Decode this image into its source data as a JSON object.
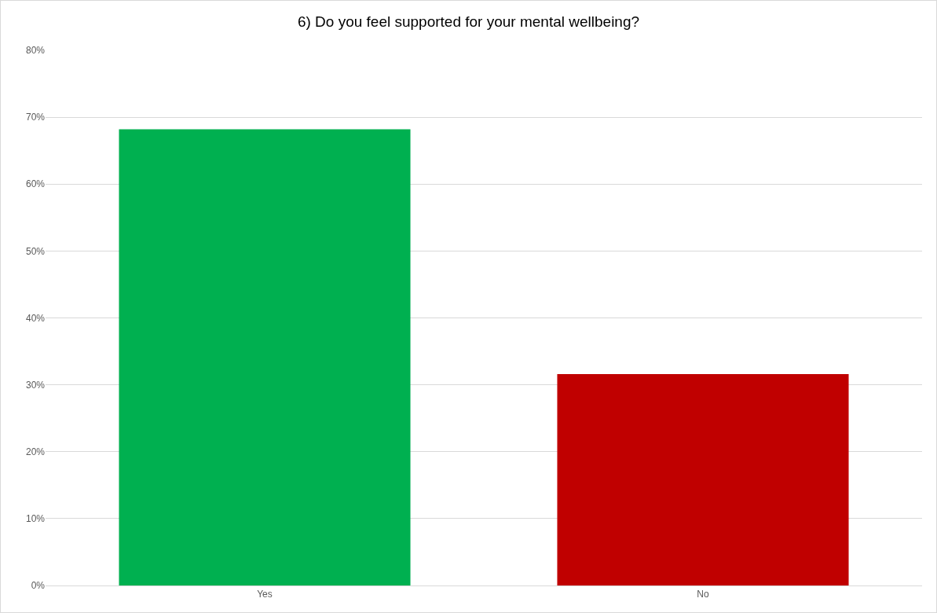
{
  "chart_data": {
    "type": "bar",
    "title": "6) Do you feel supported for your mental wellbeing?",
    "categories": [
      "Yes",
      "No"
    ],
    "values": [
      68.2,
      31.6
    ],
    "colors": [
      "#00b050",
      "#c00000"
    ],
    "ylim": [
      0,
      80
    ],
    "yticks": [
      {
        "value": 0,
        "label": "0%"
      },
      {
        "value": 10,
        "label": "10%"
      },
      {
        "value": 20,
        "label": "20%"
      },
      {
        "value": 30,
        "label": "30%"
      },
      {
        "value": 40,
        "label": "40%"
      },
      {
        "value": 50,
        "label": "50%"
      },
      {
        "value": 60,
        "label": "60%"
      },
      {
        "value": 70,
        "label": "70%"
      },
      {
        "value": 80,
        "label": "80%"
      }
    ],
    "grid": "y"
  }
}
